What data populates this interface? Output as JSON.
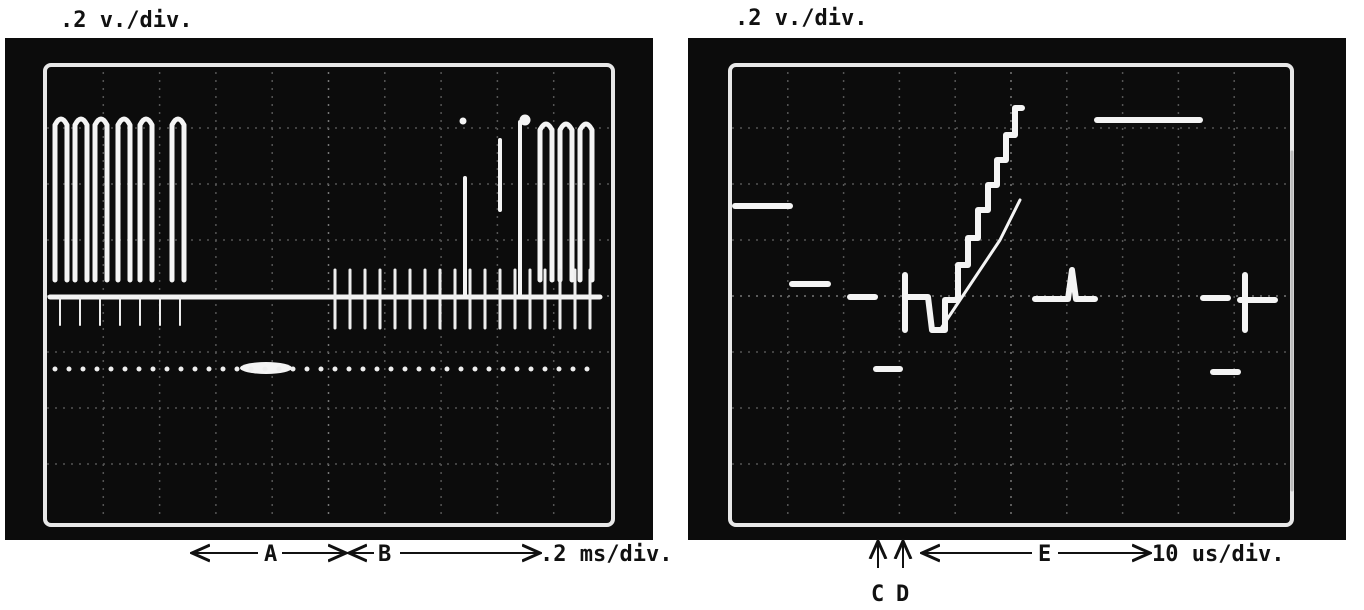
{
  "left_scope": {
    "vertical_scale": ".2 v./div.",
    "markers": {
      "a": "A",
      "b": "B"
    },
    "time_scale": ".2 ms/div."
  },
  "right_scope": {
    "vertical_scale": ".2 v./div.",
    "markers": {
      "c": "C",
      "d": "D",
      "e": "E"
    },
    "time_scale": "10 us/div."
  }
}
